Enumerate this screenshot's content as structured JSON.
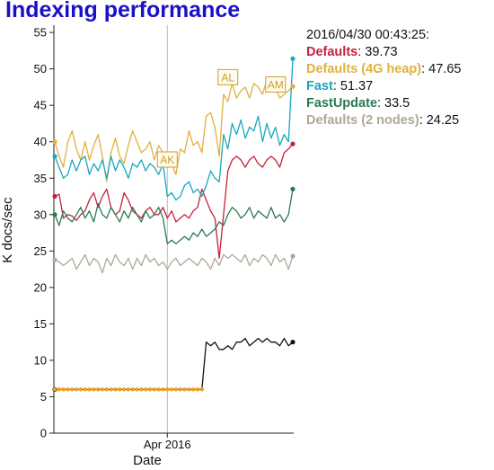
{
  "chart_data": {
    "type": "line",
    "title": "Indexing performance",
    "xlabel": "Date",
    "ylabel": "K docs/sec",
    "ylim": [
      0,
      56
    ],
    "y_ticks": [
      0,
      5,
      10,
      15,
      20,
      25,
      30,
      35,
      40,
      45,
      50,
      55
    ],
    "x_ticks": [
      {
        "at": 26,
        "label": "Apr 2016"
      }
    ],
    "x_range": [
      0,
      55
    ],
    "grid": "vertical-at-tick",
    "legend_placement": "right",
    "legend": {
      "timestamp": "2016/04/30 00:43:25:",
      "items": [
        {
          "name": "Defaults",
          "value": "39.73",
          "color": "#c8203c"
        },
        {
          "name": "Defaults (4G heap)",
          "value": "47.65",
          "color": "#e0b040"
        },
        {
          "name": "Fast",
          "value": "51.37",
          "color": "#1aa6c0"
        },
        {
          "name": "FastUpdate",
          "value": "33.5",
          "color": "#2a7a55"
        },
        {
          "name": "Defaults (2 nodes)",
          "value": "24.25",
          "color": "#b0a898"
        }
      ]
    },
    "annotations": [
      {
        "label": "AK",
        "x": 26,
        "y": 37.5
      },
      {
        "label": "AL",
        "x": 40,
        "y": 48.8
      },
      {
        "label": "AM",
        "x": 51,
        "y": 47.8
      }
    ],
    "series": [
      {
        "name": "Defaults",
        "color": "#c8203c",
        "values": [
          32.5,
          32.8,
          29.5,
          30.0,
          29.8,
          29.2,
          30.0,
          30.5,
          32.0,
          33.0,
          31.0,
          32.5,
          33.5,
          31.0,
          30.0,
          30.5,
          33.0,
          32.0,
          30.5,
          30.0,
          29.5,
          30.5,
          31.0,
          30.0,
          30.0,
          31.0,
          29.5,
          30.5,
          29.0,
          29.5,
          30.0,
          29.5,
          30.5,
          31.0,
          33.5,
          32.0,
          30.5,
          29.5,
          24.0,
          30.0,
          36.0,
          37.5,
          38.0,
          37.5,
          36.5,
          37.5,
          38.0,
          37.0,
          36.5,
          37.5,
          38.0,
          37.5,
          36.5,
          38.5,
          39.0,
          39.7
        ]
      },
      {
        "name": "Defaults (4G heap)",
        "color": "#e0b040",
        "values": [
          40.0,
          38.0,
          36.5,
          40.0,
          41.5,
          39.0,
          37.5,
          40.0,
          37.5,
          39.5,
          41.0,
          38.0,
          34.5,
          38.5,
          40.5,
          38.0,
          37.0,
          39.5,
          41.5,
          40.0,
          38.5,
          39.0,
          40.0,
          37.5,
          39.5,
          38.5,
          38.0,
          37.0,
          35.5,
          39.0,
          38.5,
          41.5,
          39.5,
          40.0,
          38.5,
          43.5,
          44.0,
          42.0,
          38.0,
          46.5,
          45.5,
          48.0,
          46.0,
          47.0,
          47.5,
          46.0,
          48.0,
          47.5,
          46.5,
          48.5,
          47.0,
          47.5,
          46.0,
          46.5,
          47.0,
          47.6
        ]
      },
      {
        "name": "Fast",
        "color": "#1aa6c0",
        "values": [
          38.0,
          36.5,
          35.0,
          35.5,
          37.5,
          36.0,
          37.5,
          38.0,
          35.5,
          37.0,
          36.0,
          37.5,
          35.0,
          38.0,
          36.0,
          37.5,
          36.5,
          35.0,
          37.0,
          36.5,
          37.5,
          36.0,
          37.0,
          36.5,
          35.5,
          37.0,
          32.5,
          33.0,
          32.0,
          32.5,
          34.0,
          34.5,
          33.0,
          33.5,
          32.5,
          34.0,
          36.0,
          35.0,
          34.5,
          41.0,
          39.0,
          42.5,
          41.0,
          43.0,
          40.5,
          42.0,
          41.5,
          43.5,
          40.0,
          42.5,
          40.5,
          42.0,
          39.5,
          41.0,
          40.0,
          51.4
        ]
      },
      {
        "name": "FastUpdate",
        "color": "#2a7a55",
        "values": [
          30.0,
          28.5,
          30.5,
          29.5,
          29.0,
          30.0,
          31.0,
          29.5,
          30.5,
          29.0,
          31.5,
          30.0,
          29.5,
          31.0,
          30.0,
          29.0,
          30.5,
          29.5,
          31.0,
          30.0,
          29.0,
          30.5,
          29.5,
          30.0,
          31.0,
          29.5,
          26.0,
          26.5,
          26.0,
          26.5,
          27.0,
          26.5,
          27.5,
          27.0,
          28.0,
          27.0,
          27.5,
          28.0,
          29.0,
          28.5,
          30.0,
          31.0,
          30.5,
          29.5,
          30.0,
          31.0,
          29.5,
          30.5,
          30.0,
          29.5,
          31.0,
          29.5,
          30.0,
          29.0,
          30.0,
          33.5
        ]
      },
      {
        "name": "Defaults (2 nodes)",
        "color": "#b0a898",
        "values": [
          23.8,
          23.5,
          23.0,
          23.5,
          24.0,
          22.5,
          23.5,
          24.5,
          23.0,
          24.0,
          23.5,
          22.0,
          24.0,
          23.0,
          24.5,
          23.5,
          23.0,
          24.0,
          22.5,
          24.0,
          23.0,
          24.5,
          23.5,
          24.0,
          23.0,
          23.5,
          22.5,
          23.5,
          24.0,
          23.0,
          23.5,
          24.0,
          23.5,
          23.0,
          24.0,
          23.5,
          22.5,
          24.0,
          23.0,
          24.5,
          24.0,
          24.5,
          24.0,
          23.5,
          24.5,
          23.0,
          24.0,
          23.5,
          24.5,
          24.0,
          23.0,
          24.5,
          23.5,
          24.0,
          22.5,
          24.3
        ]
      },
      {
        "name": "",
        "color": "#111111",
        "values": [
          6,
          6,
          6,
          6,
          6,
          6,
          6,
          6,
          6,
          6,
          6,
          6,
          6,
          6,
          6,
          6,
          6,
          6,
          6,
          6,
          6,
          6,
          6,
          6,
          6,
          6,
          6,
          6,
          6,
          6,
          6,
          6,
          6,
          6,
          6,
          12.5,
          12.0,
          12.5,
          11.5,
          11.5,
          12.0,
          11.5,
          12.5,
          12.5,
          13.0,
          12.0,
          12.5,
          13.0,
          12.5,
          13.0,
          12.5,
          12.5,
          12.0,
          13.0,
          12.0,
          12.5
        ]
      }
    ]
  }
}
